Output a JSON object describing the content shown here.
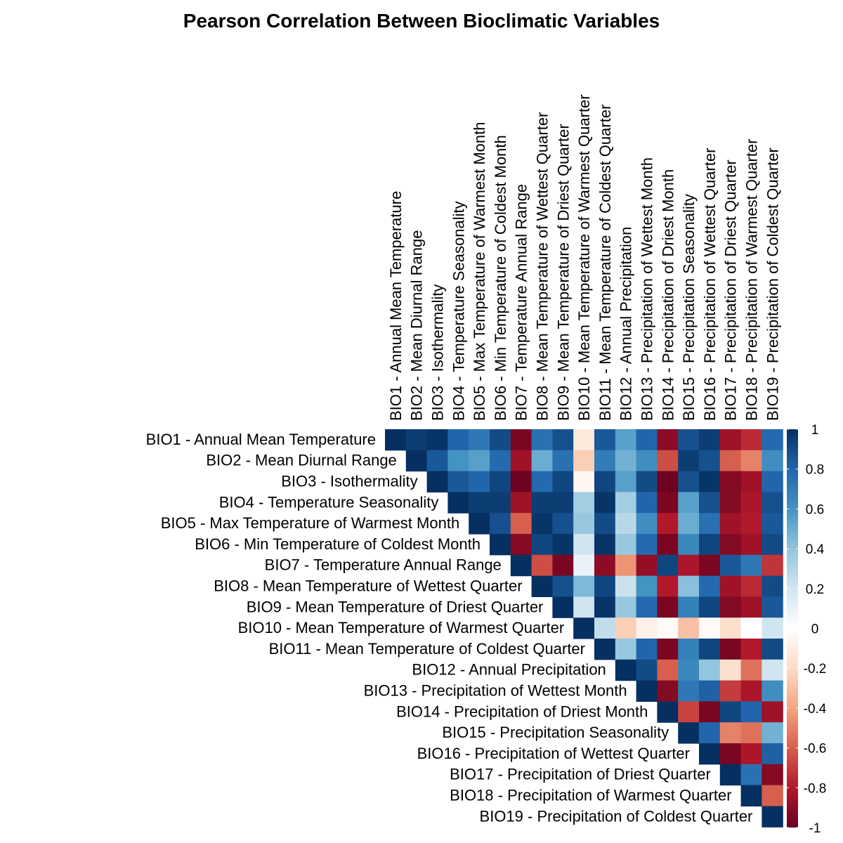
{
  "chart_data": {
    "type": "heatmap",
    "title": "Pearson Correlation Between Bioclimatic Variables",
    "triangle": "upper",
    "labels": [
      "BIO1 - Annual Mean Temperature",
      "BIO2 - Mean Diurnal Range",
      "BIO3 - Isothermality",
      "BIO4 - Temperature Seasonality",
      "BIO5 - Max Temperature of Warmest Month",
      "BIO6 - Min Temperature of Coldest Month",
      "BIO7 - Temperature Annual Range",
      "BIO8 - Mean Temperature of Wettest Quarter",
      "BIO9 - Mean Temperature of Driest Quarter",
      "BIO10 - Mean Temperature of Warmest Quarter",
      "BIO11 - Mean Temperature of Coldest Quarter",
      "BIO12 - Annual Precipitation",
      "BIO13 - Precipitation of Wettest Month",
      "BIO14 - Precipitation of Driest Month",
      "BIO15 - Precipitation Seasonality",
      "BIO16 - Precipitation of Wettest Quarter",
      "BIO17 - Precipitation of Driest Quarter",
      "BIO18 - Precipitation of Warmest Quarter",
      "BIO19 - Precipitation of Coldest Quarter"
    ],
    "matrix": [
      [
        1,
        0.95,
        0.98,
        0.8,
        0.72,
        0.9,
        -0.95,
        0.75,
        0.88,
        -0.12,
        0.85,
        0.55,
        0.8,
        -0.9,
        0.88,
        0.95,
        -0.85,
        -0.75,
        0.78
      ],
      [
        null,
        1,
        0.85,
        0.6,
        0.55,
        0.78,
        -0.85,
        0.5,
        0.75,
        -0.25,
        0.7,
        0.48,
        0.62,
        -0.65,
        0.95,
        0.88,
        -0.6,
        -0.5,
        0.62
      ],
      [
        null,
        null,
        1,
        0.85,
        0.8,
        0.92,
        -0.98,
        0.78,
        0.92,
        -0.05,
        0.92,
        0.55,
        0.9,
        -0.98,
        0.88,
        0.98,
        -0.92,
        -0.85,
        0.8
      ],
      [
        null,
        null,
        null,
        1,
        0.95,
        0.95,
        -0.85,
        0.95,
        0.95,
        0.35,
        0.98,
        0.35,
        0.8,
        -0.95,
        0.55,
        0.88,
        -0.92,
        -0.82,
        0.88
      ],
      [
        null,
        null,
        null,
        null,
        1,
        0.88,
        -0.6,
        0.98,
        0.88,
        0.38,
        0.9,
        0.28,
        0.62,
        -0.8,
        0.5,
        0.75,
        -0.85,
        -0.8,
        0.85
      ],
      [
        null,
        null,
        null,
        null,
        null,
        1,
        -0.92,
        0.92,
        0.98,
        0.2,
        0.98,
        0.38,
        0.78,
        -0.95,
        0.65,
        0.92,
        -0.92,
        -0.85,
        0.9
      ],
      [
        null,
        null,
        null,
        null,
        null,
        null,
        1,
        -0.65,
        -0.95,
        0.1,
        -0.9,
        -0.45,
        -0.88,
        0.92,
        -0.82,
        -0.95,
        0.85,
        0.72,
        -0.72
      ],
      [
        null,
        null,
        null,
        null,
        null,
        null,
        null,
        1,
        0.88,
        0.45,
        0.92,
        0.22,
        0.6,
        -0.8,
        0.42,
        0.78,
        -0.85,
        -0.75,
        0.9
      ],
      [
        null,
        null,
        null,
        null,
        null,
        null,
        null,
        null,
        1,
        0.2,
        0.98,
        0.38,
        0.78,
        -0.95,
        0.68,
        0.92,
        -0.92,
        -0.85,
        0.85
      ],
      [
        null,
        null,
        null,
        null,
        null,
        null,
        null,
        null,
        null,
        1,
        0.25,
        -0.25,
        -0.08,
        -0.02,
        -0.3,
        -0.02,
        -0.18,
        0,
        0.2
      ],
      [
        null,
        null,
        null,
        null,
        null,
        null,
        null,
        null,
        null,
        null,
        1,
        0.38,
        0.8,
        -0.95,
        0.68,
        0.92,
        -0.95,
        -0.8,
        0.9
      ],
      [
        null,
        null,
        null,
        null,
        null,
        null,
        null,
        null,
        null,
        null,
        null,
        1,
        0.9,
        -0.6,
        0.65,
        0.4,
        -0.18,
        -0.55,
        0.2
      ],
      [
        null,
        null,
        null,
        null,
        null,
        null,
        null,
        null,
        null,
        null,
        null,
        null,
        1,
        -0.92,
        0.72,
        0.82,
        -0.7,
        -0.82,
        0.62
      ],
      [
        null,
        null,
        null,
        null,
        null,
        null,
        null,
        null,
        null,
        null,
        null,
        null,
        null,
        1,
        -0.68,
        -0.95,
        0.92,
        0.8,
        -0.85
      ],
      [
        null,
        null,
        null,
        null,
        null,
        null,
        null,
        null,
        null,
        null,
        null,
        null,
        null,
        null,
        1,
        0.8,
        -0.5,
        -0.55,
        0.48
      ],
      [
        null,
        null,
        null,
        null,
        null,
        null,
        null,
        null,
        null,
        null,
        null,
        null,
        null,
        null,
        null,
        1,
        -0.95,
        -0.82,
        0.82
      ],
      [
        null,
        null,
        null,
        null,
        null,
        null,
        null,
        null,
        null,
        null,
        null,
        null,
        null,
        null,
        null,
        null,
        1,
        0.75,
        -0.92
      ],
      [
        null,
        null,
        null,
        null,
        null,
        null,
        null,
        null,
        null,
        null,
        null,
        null,
        null,
        null,
        null,
        null,
        null,
        1,
        -0.6
      ],
      [
        null,
        null,
        null,
        null,
        null,
        null,
        null,
        null,
        null,
        null,
        null,
        null,
        null,
        null,
        null,
        null,
        null,
        null,
        1
      ]
    ],
    "colorbar": {
      "range": [
        -1,
        1
      ],
      "ticks": [
        "1",
        "0.8",
        "0.6",
        "0.4",
        "0.2",
        "0",
        "-0.2",
        "-0.4",
        "-0.6",
        "-0.8",
        "-1"
      ]
    },
    "colors": {
      "low": "#67001f",
      "mid": "#ffffff",
      "high": "#053061",
      "stops": [
        "#67001f",
        "#b2182b",
        "#d6604d",
        "#f4a582",
        "#fddbc7",
        "#ffffff",
        "#d1e5f0",
        "#92c5de",
        "#4393c3",
        "#2166ac",
        "#053061"
      ]
    }
  }
}
